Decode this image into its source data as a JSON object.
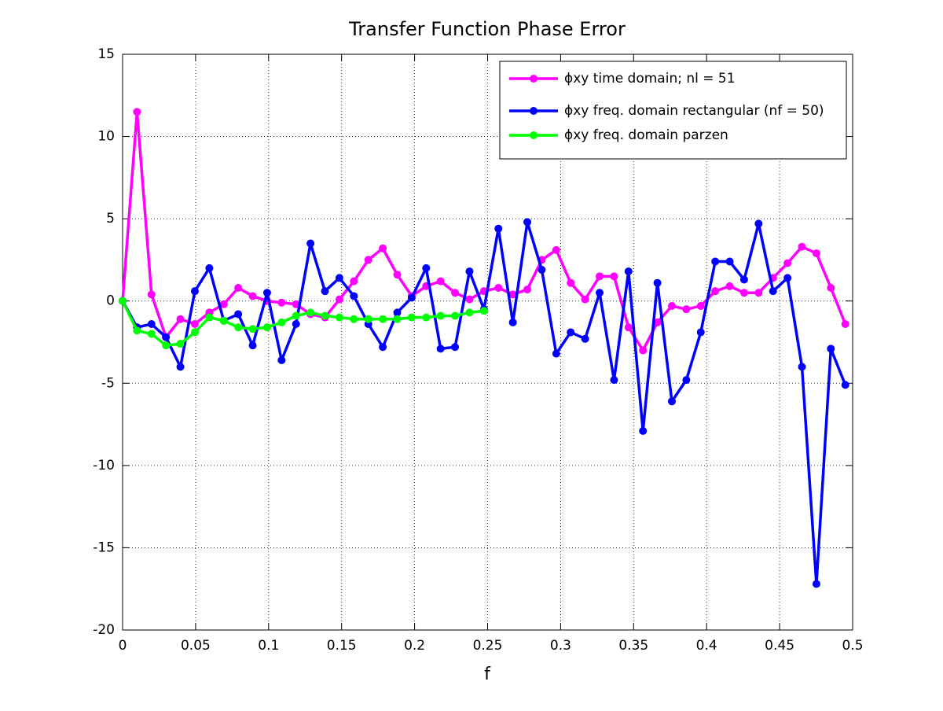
{
  "chart_data": {
    "type": "line",
    "title": "Transfer Function Phase Error",
    "x_label": "f",
    "x": [
      0,
      0.0099,
      0.0198,
      0.0297,
      0.0396,
      0.0495,
      0.0594,
      0.0693,
      0.0792,
      0.0891,
      0.099,
      0.1089,
      0.1188,
      0.1287,
      0.1386,
      0.1485,
      0.1584,
      0.1683,
      0.1782,
      0.1881,
      0.198,
      0.2079,
      0.2178,
      0.2277,
      0.2376,
      0.2475,
      0.2574,
      0.2673,
      0.2772,
      0.2871,
      0.297,
      0.3069,
      0.3168,
      0.3267,
      0.3366,
      0.3465,
      0.3564,
      0.3663,
      0.3762,
      0.3861,
      0.396,
      0.4059,
      0.4158,
      0.4257,
      0.4356,
      0.4455,
      0.4554,
      0.4653,
      0.4752,
      0.4851,
      0.495
    ],
    "series": [
      {
        "name": "ϕxy time domain; nl = 51",
        "color": "#ff00ff",
        "values": [
          0,
          11.5,
          0.4,
          -2.2,
          -1.1,
          -1.4,
          -0.7,
          -0.2,
          0.8,
          0.3,
          0,
          -0.1,
          -0.2,
          -0.8,
          -1.0,
          0.1,
          1.2,
          2.5,
          3.2,
          1.6,
          0.3,
          0.9,
          1.2,
          0.5,
          0.1,
          0.6,
          0.8,
          0.4,
          0.7,
          2.5,
          3.1,
          1.1,
          0.1,
          1.5,
          1.5,
          -1.6,
          -3.0,
          -1.3,
          -0.3,
          -0.5,
          -0.3,
          0.6,
          0.9,
          0.5,
          0.5,
          1.4,
          2.3,
          3.3,
          2.9,
          0.8,
          -1.4
        ]
      },
      {
        "name": "ϕxy freq. domain rectangular (nf = 50)",
        "color": "#0000ff",
        "values": [
          0,
          -1.6,
          -1.4,
          -2.2,
          -4.0,
          0.6,
          2.0,
          -1.2,
          -0.8,
          -2.7,
          0.5,
          -3.6,
          -1.4,
          3.5,
          0.6,
          1.4,
          0.3,
          -1.4,
          -2.8,
          -0.7,
          0.2,
          2.0,
          -2.9,
          -2.8,
          1.8,
          -0.5,
          4.4,
          -1.3,
          4.8,
          1.9,
          -3.2,
          -1.9,
          -2.3,
          0.5,
          -4.8,
          1.8,
          -7.9,
          1.1,
          -6.1,
          -4.8,
          -1.9,
          2.4,
          2.4,
          1.3,
          4.7,
          0.6,
          1.4,
          -4.0,
          -17.2,
          -2.9,
          -5.1
        ]
      },
      {
        "name": "ϕxy freq. domain parzen",
        "color": "#00ff00",
        "values": [
          0,
          -1.8,
          -2.0,
          -2.7,
          -2.6,
          -1.9,
          -1.0,
          -1.2,
          -1.6,
          -1.7,
          -1.6,
          -1.3,
          -0.9,
          -0.7,
          -0.9,
          -1.0,
          -1.1,
          -1.1,
          -1.1,
          -1.1,
          -1.0,
          -1.0,
          -0.9,
          -0.9,
          -0.7,
          -0.6,
          null,
          null,
          null,
          null,
          null,
          null,
          null,
          null,
          null,
          null,
          null,
          null,
          null,
          null,
          null,
          null,
          null,
          null,
          null,
          null,
          null,
          null,
          null,
          null,
          null
        ]
      }
    ],
    "xlim": [
      0,
      0.5
    ],
    "xticks": [
      0,
      0.05,
      0.1,
      0.15,
      0.2,
      0.25,
      0.3,
      0.35,
      0.4,
      0.45,
      0.5
    ],
    "ylim": [
      -20,
      15
    ],
    "yticks": [
      -20,
      -15,
      -10,
      -5,
      0,
      5,
      10,
      15
    ],
    "grid": true,
    "legend": "upper right"
  }
}
